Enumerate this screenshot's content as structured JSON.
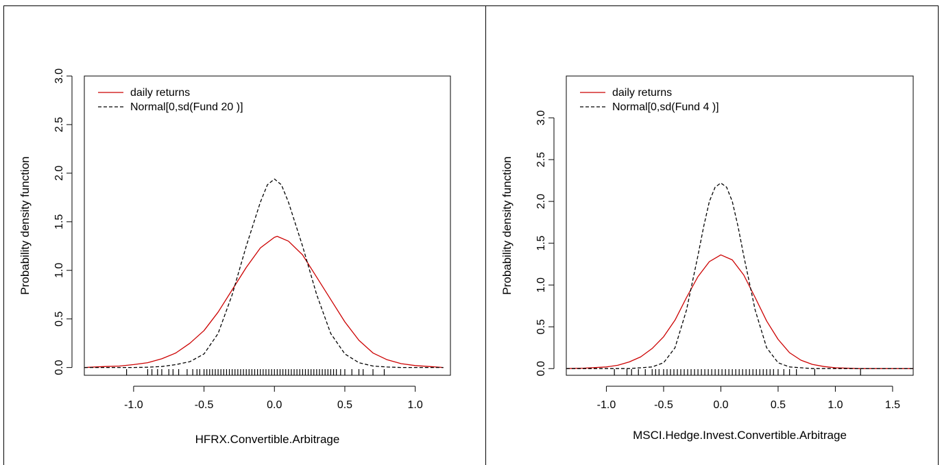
{
  "colors": {
    "empirical": "#cc0000",
    "normal": "#000000"
  },
  "chart_data": [
    {
      "type": "line",
      "ylabel": "Probability density function",
      "xlabel": "HFRX.Convertible.Arbitrage",
      "xlim": [
        -1.35,
        1.25
      ],
      "ylim": [
        -0.08,
        3.0
      ],
      "xticks": [
        -1.0,
        -0.5,
        0.0,
        0.5,
        1.0
      ],
      "xtick_labels": [
        "-1.0",
        "-0.5",
        "0.0",
        "0.5",
        "1.0"
      ],
      "yticks": [
        0.0,
        0.5,
        1.0,
        1.5,
        2.0,
        2.5,
        3.0
      ],
      "ytick_labels": [
        "0.0",
        "0.5",
        "1.0",
        "1.5",
        "2.0",
        "2.5",
        "3.0"
      ],
      "legend_position": "top-left",
      "series": [
        {
          "name": "daily returns",
          "style": "solid",
          "color": "#cc0000",
          "x": [
            -1.35,
            -1.2,
            -1.1,
            -1.0,
            -0.9,
            -0.8,
            -0.7,
            -0.6,
            -0.5,
            -0.4,
            -0.3,
            -0.2,
            -0.1,
            0.0,
            0.02,
            0.1,
            0.2,
            0.3,
            0.4,
            0.5,
            0.6,
            0.7,
            0.8,
            0.9,
            1.0,
            1.1,
            1.2
          ],
          "y": [
            0.0,
            0.01,
            0.015,
            0.03,
            0.05,
            0.09,
            0.15,
            0.25,
            0.38,
            0.57,
            0.8,
            1.03,
            1.23,
            1.34,
            1.35,
            1.3,
            1.16,
            0.93,
            0.7,
            0.47,
            0.28,
            0.15,
            0.08,
            0.04,
            0.02,
            0.01,
            0.0
          ]
        },
        {
          "name": "Normal[0,sd(Fund 20 )]",
          "style": "dashed",
          "color": "#000000",
          "x": [
            -1.35,
            -1.0,
            -0.9,
            -0.8,
            -0.7,
            -0.6,
            -0.5,
            -0.4,
            -0.3,
            -0.2,
            -0.1,
            -0.05,
            0.0,
            0.05,
            0.1,
            0.2,
            0.3,
            0.4,
            0.5,
            0.6,
            0.7,
            0.8,
            0.9,
            1.0,
            1.2
          ],
          "y": [
            0.0,
            0.0,
            0.003,
            0.01,
            0.03,
            0.06,
            0.14,
            0.35,
            0.75,
            1.25,
            1.7,
            1.88,
            1.94,
            1.88,
            1.7,
            1.25,
            0.75,
            0.35,
            0.14,
            0.05,
            0.015,
            0.005,
            0.0,
            0.0,
            0.0
          ]
        }
      ],
      "rug": [
        -1.05,
        -0.9,
        -0.87,
        -0.83,
        -0.8,
        -0.75,
        -0.72,
        -0.68,
        -0.62,
        -0.58,
        -0.55,
        -0.53,
        -0.5,
        -0.48,
        -0.46,
        -0.44,
        -0.42,
        -0.4,
        -0.38,
        -0.36,
        -0.34,
        -0.32,
        -0.3,
        -0.28,
        -0.26,
        -0.24,
        -0.22,
        -0.2,
        -0.18,
        -0.16,
        -0.14,
        -0.12,
        -0.1,
        -0.08,
        -0.06,
        -0.04,
        -0.02,
        0.0,
        0.02,
        0.04,
        0.06,
        0.08,
        0.1,
        0.12,
        0.14,
        0.16,
        0.18,
        0.2,
        0.22,
        0.24,
        0.26,
        0.28,
        0.3,
        0.32,
        0.34,
        0.36,
        0.38,
        0.4,
        0.42,
        0.44,
        0.47,
        0.5,
        0.55,
        0.6,
        0.63,
        0.7,
        0.78
      ]
    },
    {
      "type": "line",
      "ylabel": "Probability density function",
      "xlabel": "MSCI.Hedge.Invest.Convertible.Arbitrage",
      "xlim": [
        -1.35,
        1.68
      ],
      "ylim": [
        -0.08,
        3.5
      ],
      "xticks": [
        -1.0,
        -0.5,
        0.0,
        0.5,
        1.0,
        1.5
      ],
      "xtick_labels": [
        "-1.0",
        "-0.5",
        "0.0",
        "0.5",
        "1.0",
        "1.5"
      ],
      "yticks": [
        0.0,
        0.5,
        1.0,
        1.5,
        2.0,
        2.5,
        3.0
      ],
      "ytick_labels": [
        "0.0",
        "0.5",
        "1.0",
        "1.5",
        "2.0",
        "2.5",
        "3.0"
      ],
      "legend_position": "top-left",
      "series": [
        {
          "name": "daily returns",
          "style": "solid",
          "color": "#cc0000",
          "x": [
            -1.35,
            -1.2,
            -1.0,
            -0.9,
            -0.8,
            -0.7,
            -0.6,
            -0.5,
            -0.4,
            -0.3,
            -0.2,
            -0.1,
            0.0,
            0.1,
            0.2,
            0.3,
            0.4,
            0.5,
            0.6,
            0.7,
            0.8,
            0.9,
            1.0,
            1.2,
            1.4,
            1.68
          ],
          "y": [
            0.0,
            0.005,
            0.02,
            0.04,
            0.08,
            0.14,
            0.24,
            0.38,
            0.58,
            0.85,
            1.1,
            1.28,
            1.36,
            1.3,
            1.12,
            0.85,
            0.57,
            0.35,
            0.19,
            0.1,
            0.05,
            0.025,
            0.01,
            0.0,
            0.0,
            0.0
          ]
        },
        {
          "name": "Normal[0,sd(Fund 4 )]",
          "style": "dashed",
          "color": "#000000",
          "x": [
            -1.35,
            -0.8,
            -0.6,
            -0.5,
            -0.4,
            -0.3,
            -0.2,
            -0.15,
            -0.1,
            -0.05,
            0.0,
            0.05,
            0.1,
            0.15,
            0.2,
            0.3,
            0.4,
            0.5,
            0.6,
            0.8,
            1.0,
            1.68
          ],
          "y": [
            0.0,
            0.0,
            0.02,
            0.07,
            0.25,
            0.7,
            1.35,
            1.7,
            2.0,
            2.17,
            2.22,
            2.17,
            2.0,
            1.7,
            1.35,
            0.7,
            0.25,
            0.07,
            0.02,
            0.0,
            0.0,
            0.0
          ]
        }
      ],
      "rug": [
        -0.93,
        -0.82,
        -0.78,
        -0.72,
        -0.66,
        -0.6,
        -0.57,
        -0.54,
        -0.5,
        -0.47,
        -0.44,
        -0.41,
        -0.38,
        -0.35,
        -0.32,
        -0.29,
        -0.26,
        -0.23,
        -0.2,
        -0.17,
        -0.14,
        -0.11,
        -0.08,
        -0.05,
        -0.02,
        0.01,
        0.04,
        0.07,
        0.1,
        0.13,
        0.16,
        0.19,
        0.22,
        0.25,
        0.28,
        0.31,
        0.34,
        0.37,
        0.4,
        0.43,
        0.46,
        0.5,
        0.55,
        0.6,
        0.66,
        0.82,
        1.22
      ]
    }
  ]
}
